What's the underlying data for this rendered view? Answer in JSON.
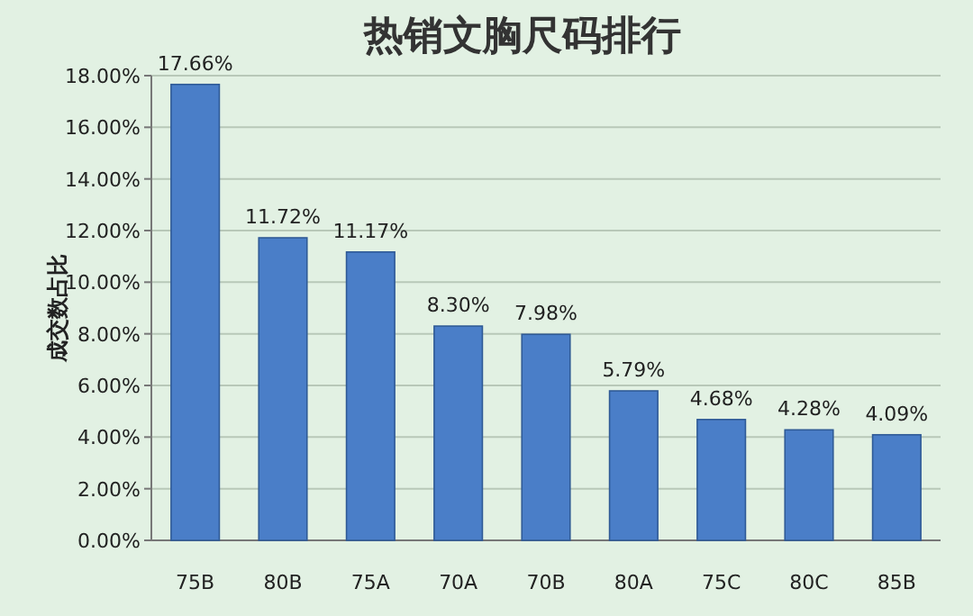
{
  "chart_data": {
    "type": "bar",
    "title": "热销文胸尺码排行",
    "ylabel": "成交数占比",
    "categories": [
      "75B",
      "80B",
      "75A",
      "70A",
      "70B",
      "80A",
      "75C",
      "80C",
      "85B"
    ],
    "values": [
      17.66,
      11.72,
      11.17,
      8.3,
      7.98,
      5.79,
      4.68,
      4.28,
      4.09
    ],
    "value_labels": [
      "17.66%",
      "11.72%",
      "11.17%",
      "8.30%",
      "7.98%",
      "5.79%",
      "4.68%",
      "4.28%",
      "4.09%"
    ],
    "color": "#4a7ec8",
    "ylim": [
      0,
      18
    ],
    "yticks": [
      {
        "value": 0,
        "label": "0.00%"
      },
      {
        "value": 2,
        "label": "2.00%"
      },
      {
        "value": 4,
        "label": "4.00%"
      },
      {
        "value": 6,
        "label": "6.00%"
      },
      {
        "value": 8,
        "label": "8.00%"
      },
      {
        "value": 10,
        "label": "10.00%"
      },
      {
        "value": 12,
        "label": "12.00%"
      },
      {
        "value": 14,
        "label": "14.00%"
      },
      {
        "value": 16,
        "label": "16.00%"
      },
      {
        "value": 18,
        "label": "18.00%"
      }
    ],
    "grid": true
  }
}
